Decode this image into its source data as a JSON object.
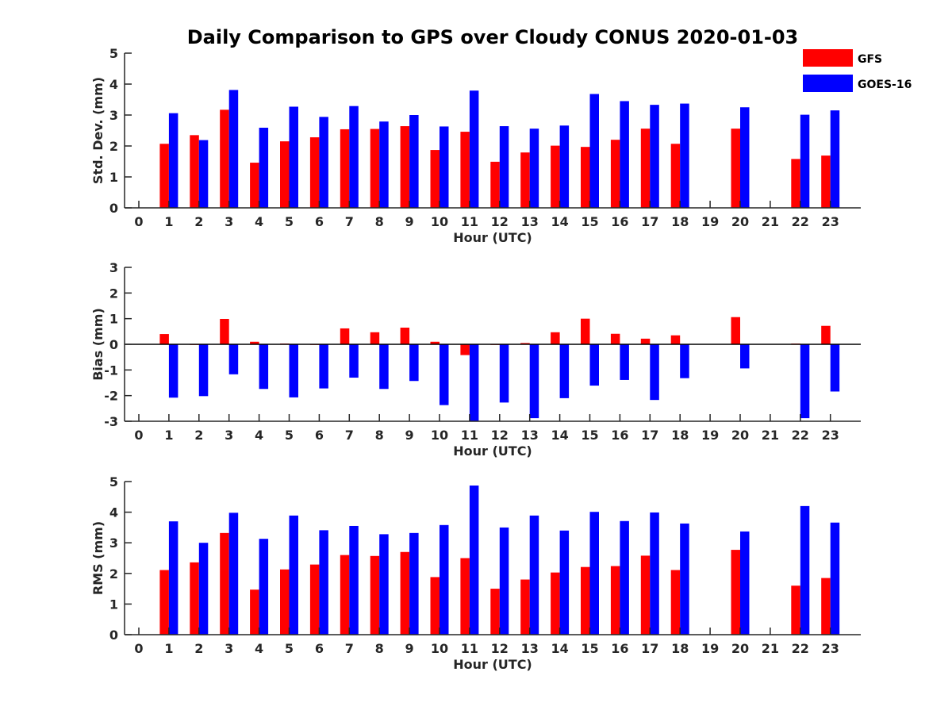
{
  "title": "Daily Comparison to GPS over Cloudy CONUS 2020-01-03",
  "legend": {
    "placement": "top-right",
    "items": [
      {
        "name": "GFS",
        "color": "#ff0000"
      },
      {
        "name": "GOES-16",
        "color": "#0000ff"
      }
    ]
  },
  "chart_data": [
    {
      "type": "bar",
      "ylabel": "Std. Dev. (mm)",
      "xlabel": "Hour (UTC)",
      "ylim": [
        0,
        5
      ],
      "yticks": [
        0,
        1,
        2,
        3,
        4,
        5
      ],
      "categories": [
        0,
        1,
        2,
        3,
        4,
        5,
        6,
        7,
        8,
        9,
        10,
        11,
        12,
        13,
        14,
        15,
        16,
        17,
        18,
        19,
        20,
        21,
        22,
        23
      ],
      "series": [
        {
          "name": "GFS",
          "color": "#ff0000",
          "values": [
            null,
            2.07,
            2.35,
            3.17,
            1.46,
            2.15,
            2.28,
            2.54,
            2.55,
            2.64,
            1.87,
            2.46,
            1.49,
            1.79,
            2.01,
            1.97,
            2.2,
            2.56,
            2.07,
            null,
            2.56,
            null,
            1.58,
            1.69
          ]
        },
        {
          "name": "GOES-16",
          "color": "#0000ff",
          "values": [
            null,
            3.06,
            2.19,
            3.81,
            2.59,
            3.27,
            2.94,
            3.29,
            2.79,
            3.0,
            2.63,
            3.79,
            2.64,
            2.56,
            2.66,
            3.68,
            3.45,
            3.33,
            3.37,
            null,
            3.25,
            null,
            3.01,
            3.15
          ]
        }
      ]
    },
    {
      "type": "bar",
      "ylabel": "Bias (mm)",
      "xlabel": "Hour (UTC)",
      "ylim": [
        -3,
        3
      ],
      "yticks": [
        -3,
        -2,
        -1,
        0,
        1,
        2,
        3
      ],
      "categories": [
        0,
        1,
        2,
        3,
        4,
        5,
        6,
        7,
        8,
        9,
        10,
        11,
        12,
        13,
        14,
        15,
        16,
        17,
        18,
        19,
        20,
        21,
        22,
        23
      ],
      "series": [
        {
          "name": "GFS",
          "color": "#ff0000",
          "values": [
            null,
            0.4,
            -0.02,
            0.99,
            0.1,
            0.03,
            0.0,
            0.62,
            0.47,
            0.65,
            0.1,
            -0.42,
            0.0,
            0.05,
            0.47,
            1.0,
            0.41,
            0.22,
            0.35,
            null,
            1.06,
            null,
            0.03,
            0.72
          ]
        },
        {
          "name": "GOES-16",
          "color": "#0000ff",
          "values": [
            null,
            -2.08,
            -2.02,
            -1.17,
            -1.74,
            -2.07,
            -1.72,
            -1.3,
            -1.74,
            -1.43,
            -2.37,
            -3.0,
            -2.27,
            -2.88,
            -2.1,
            -1.61,
            -1.39,
            -2.17,
            -1.32,
            null,
            -0.94,
            null,
            -2.88,
            -1.84
          ]
        }
      ]
    },
    {
      "type": "bar",
      "ylabel": "RMS (mm)",
      "xlabel": "Hour (UTC)",
      "ylim": [
        0,
        5
      ],
      "yticks": [
        0,
        1,
        2,
        3,
        4,
        5
      ],
      "categories": [
        0,
        1,
        2,
        3,
        4,
        5,
        6,
        7,
        8,
        9,
        10,
        11,
        12,
        13,
        14,
        15,
        16,
        17,
        18,
        19,
        20,
        21,
        22,
        23
      ],
      "series": [
        {
          "name": "GFS",
          "color": "#ff0000",
          "values": [
            null,
            2.11,
            2.36,
            3.32,
            1.47,
            2.13,
            2.29,
            2.6,
            2.57,
            2.7,
            1.88,
            2.5,
            1.5,
            1.8,
            2.03,
            2.21,
            2.24,
            2.58,
            2.11,
            null,
            2.77,
            null,
            1.6,
            1.85
          ]
        },
        {
          "name": "GOES-16",
          "color": "#0000ff",
          "values": [
            null,
            3.7,
            3.0,
            3.98,
            3.13,
            3.89,
            3.41,
            3.55,
            3.28,
            3.32,
            3.58,
            4.87,
            3.5,
            3.89,
            3.4,
            4.01,
            3.71,
            3.99,
            3.63,
            null,
            3.37,
            null,
            4.2,
            3.66
          ]
        }
      ]
    }
  ]
}
